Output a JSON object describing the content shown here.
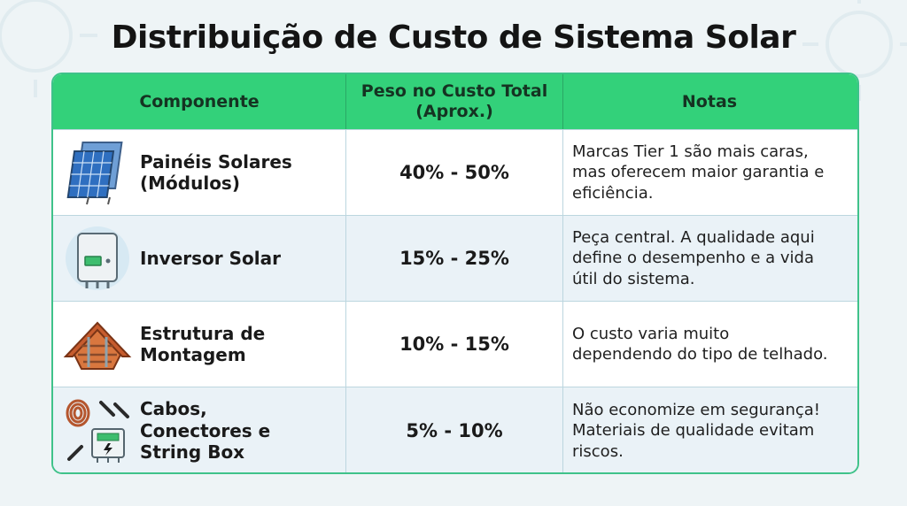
{
  "title": "Distribuição de Custo de Sistema Solar",
  "colors": {
    "header": "#33d17a",
    "border": "#3fc28a",
    "background": "#eef4f6"
  },
  "table": {
    "headers": [
      "Componente",
      "Peso no Custo Total\n(Aprox.)",
      "Notas"
    ],
    "rows": [
      {
        "icon": "solar-panel-icon",
        "component": "Painéis Solares\n(Módulos)",
        "weight": "40% - 50%",
        "note": "Marcas Tier 1 são mais caras,\nmas oferecem maior garantia e\neficiência."
      },
      {
        "icon": "inverter-icon",
        "component": "Inversor Solar",
        "weight": "15% - 25%",
        "note": "Peça central. A qualidade aqui\ndefine o desempenho e a vida\nútil do sistema."
      },
      {
        "icon": "roof-mounting-icon",
        "component": "Estrutura de\nMontagem",
        "weight": "10% - 15%",
        "note": "O custo varia muito\ndependendo do tipo de telhado."
      },
      {
        "icon": "cables-string-box-icon",
        "component": "Cabos,\nConectores e\nString Box",
        "weight": "5% - 10%",
        "note": "Não economize em segurança!\nMateriais de qualidade evitam\nriscos."
      }
    ]
  }
}
